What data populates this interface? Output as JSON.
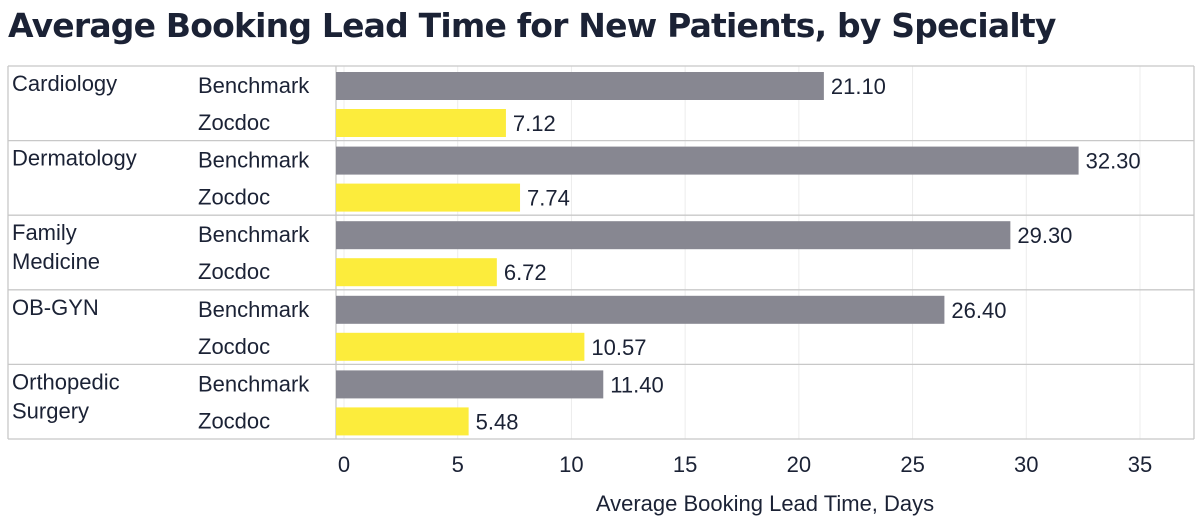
{
  "chart_data": {
    "type": "bar",
    "orientation": "horizontal",
    "title": "Average Booking Lead Time for New Patients, by Specialty",
    "xlabel": "Average Booking Lead Time, Days",
    "categories": [
      [
        "Cardiology"
      ],
      [
        "Dermatology"
      ],
      [
        "Family",
        "Medicine"
      ],
      [
        "OB-GYN"
      ],
      [
        "Orthopedic",
        "Surgery"
      ]
    ],
    "series": [
      {
        "name": "Benchmark",
        "color": "#878791",
        "values": [
          21.1,
          32.3,
          29.3,
          26.4,
          11.4
        ],
        "labels": [
          "21.10",
          "32.30",
          "29.30",
          "26.40",
          "11.40"
        ]
      },
      {
        "name": "Zocdoc",
        "color": "#fcec3c",
        "values": [
          7.12,
          7.74,
          6.72,
          10.57,
          5.48
        ],
        "labels": [
          "7.12",
          "7.74",
          "6.72",
          "10.57",
          "5.48"
        ]
      }
    ],
    "xlim": [
      0,
      35
    ],
    "xticks": [
      0,
      5,
      10,
      15,
      20,
      25,
      30,
      35
    ],
    "grid": true,
    "legend": "none"
  }
}
